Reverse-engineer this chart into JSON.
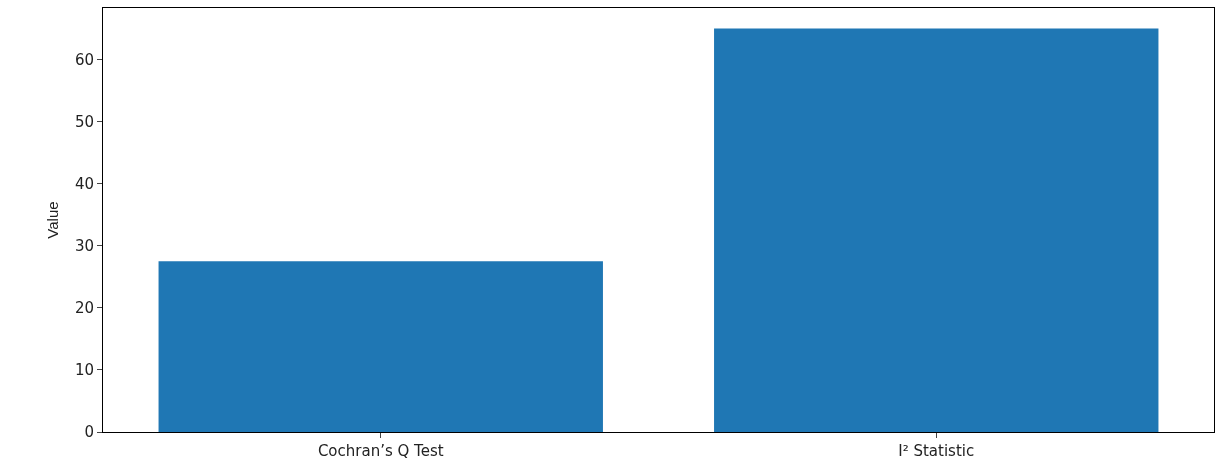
{
  "chart_data": {
    "type": "bar",
    "ylabel": "Value",
    "categories": [
      "Cochran’s Q Test",
      "I² Statistic"
    ],
    "values": [
      27.5,
      65
    ],
    "color": "#1f77b4",
    "ylim": [
      0,
      68.3
    ],
    "yticks": [
      0,
      10,
      20,
      30,
      40,
      50,
      60
    ]
  }
}
